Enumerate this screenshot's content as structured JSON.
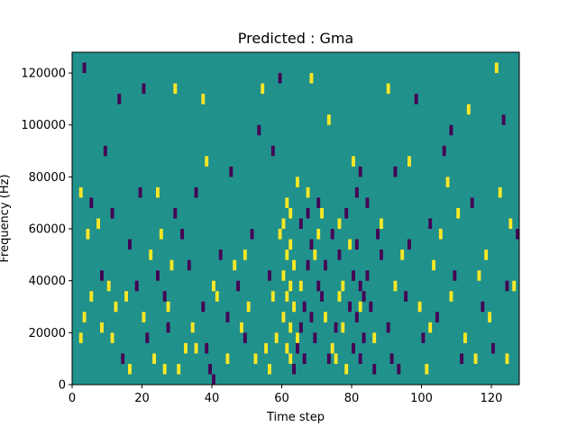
{
  "chart_data": {
    "type": "heatmap",
    "title": "Predicted : Gma",
    "xlabel": "Time step",
    "ylabel": "Frequency (Hz)",
    "xlim": [
      0,
      128
    ],
    "ylim": [
      0,
      128000
    ],
    "x_ticks": [
      0,
      20,
      40,
      60,
      80,
      100,
      120
    ],
    "y_ticks": [
      0,
      20000,
      40000,
      60000,
      80000,
      100000,
      120000
    ],
    "x_tick_labels": [
      "0",
      "20",
      "40",
      "60",
      "80",
      "100",
      "120"
    ],
    "y_tick_labels": [
      "0",
      "20000",
      "40000",
      "60000",
      "80000",
      "100000",
      "120000"
    ],
    "grid": false,
    "colormap": "viridis",
    "colors": {
      "background": "#21918c",
      "high": "#fde725",
      "low": "#440154"
    },
    "cell_height_hz": 4000,
    "cell_width_steps": 1,
    "high_value_cells": [
      [
        2,
        72000
      ],
      [
        2,
        16000
      ],
      [
        3,
        24000
      ],
      [
        4,
        56000
      ],
      [
        5,
        32000
      ],
      [
        7,
        60000
      ],
      [
        8,
        20000
      ],
      [
        10,
        36000
      ],
      [
        11,
        16000
      ],
      [
        12,
        28000
      ],
      [
        15,
        32000
      ],
      [
        16,
        4000
      ],
      [
        20,
        24000
      ],
      [
        22,
        48000
      ],
      [
        23,
        8000
      ],
      [
        24,
        72000
      ],
      [
        25,
        56000
      ],
      [
        26,
        4000
      ],
      [
        27,
        28000
      ],
      [
        28,
        44000
      ],
      [
        29,
        112000
      ],
      [
        30,
        4000
      ],
      [
        32,
        12000
      ],
      [
        34,
        20000
      ],
      [
        35,
        12000
      ],
      [
        37,
        108000
      ],
      [
        38,
        84000
      ],
      [
        40,
        36000
      ],
      [
        41,
        32000
      ],
      [
        44,
        8000
      ],
      [
        46,
        44000
      ],
      [
        48,
        20000
      ],
      [
        49,
        48000
      ],
      [
        50,
        28000
      ],
      [
        52,
        8000
      ],
      [
        54,
        112000
      ],
      [
        55,
        12000
      ],
      [
        56,
        4000
      ],
      [
        57,
        32000
      ],
      [
        58,
        16000
      ],
      [
        59,
        56000
      ],
      [
        60,
        60000
      ],
      [
        60,
        40000
      ],
      [
        60,
        24000
      ],
      [
        61,
        68000
      ],
      [
        61,
        48000
      ],
      [
        61,
        32000
      ],
      [
        61,
        12000
      ],
      [
        62,
        64000
      ],
      [
        62,
        52000
      ],
      [
        62,
        36000
      ],
      [
        62,
        20000
      ],
      [
        62,
        8000
      ],
      [
        63,
        28000
      ],
      [
        63,
        44000
      ],
      [
        64,
        76000
      ],
      [
        64,
        16000
      ],
      [
        65,
        36000
      ],
      [
        67,
        72000
      ],
      [
        68,
        116000
      ],
      [
        69,
        48000
      ],
      [
        70,
        56000
      ],
      [
        71,
        64000
      ],
      [
        72,
        24000
      ],
      [
        73,
        100000
      ],
      [
        74,
        12000
      ],
      [
        75,
        8000
      ],
      [
        76,
        32000
      ],
      [
        76,
        60000
      ],
      [
        77,
        36000
      ],
      [
        77,
        20000
      ],
      [
        78,
        4000
      ],
      [
        79,
        52000
      ],
      [
        80,
        84000
      ],
      [
        82,
        28000
      ],
      [
        86,
        16000
      ],
      [
        88,
        60000
      ],
      [
        90,
        112000
      ],
      [
        92,
        36000
      ],
      [
        94,
        48000
      ],
      [
        96,
        84000
      ],
      [
        99,
        28000
      ],
      [
        101,
        4000
      ],
      [
        102,
        20000
      ],
      [
        103,
        44000
      ],
      [
        105,
        56000
      ],
      [
        107,
        76000
      ],
      [
        108,
        32000
      ],
      [
        110,
        64000
      ],
      [
        112,
        16000
      ],
      [
        113,
        104000
      ],
      [
        115,
        8000
      ],
      [
        116,
        40000
      ],
      [
        118,
        48000
      ],
      [
        119,
        24000
      ],
      [
        121,
        120000
      ],
      [
        122,
        72000
      ],
      [
        124,
        8000
      ],
      [
        125,
        60000
      ],
      [
        126,
        36000
      ]
    ],
    "low_value_cells": [
      [
        3,
        120000
      ],
      [
        5,
        68000
      ],
      [
        8,
        40000
      ],
      [
        9,
        88000
      ],
      [
        11,
        64000
      ],
      [
        13,
        108000
      ],
      [
        14,
        8000
      ],
      [
        16,
        52000
      ],
      [
        18,
        36000
      ],
      [
        19,
        72000
      ],
      [
        20,
        112000
      ],
      [
        21,
        16000
      ],
      [
        24,
        40000
      ],
      [
        26,
        32000
      ],
      [
        27,
        20000
      ],
      [
        29,
        64000
      ],
      [
        31,
        56000
      ],
      [
        33,
        44000
      ],
      [
        35,
        72000
      ],
      [
        37,
        28000
      ],
      [
        38,
        12000
      ],
      [
        39,
        4000
      ],
      [
        40,
        0
      ],
      [
        42,
        48000
      ],
      [
        44,
        24000
      ],
      [
        45,
        80000
      ],
      [
        47,
        36000
      ],
      [
        49,
        16000
      ],
      [
        51,
        56000
      ],
      [
        53,
        96000
      ],
      [
        56,
        40000
      ],
      [
        57,
        88000
      ],
      [
        59,
        116000
      ],
      [
        63,
        4000
      ],
      [
        64,
        12000
      ],
      [
        65,
        20000
      ],
      [
        65,
        60000
      ],
      [
        66,
        8000
      ],
      [
        66,
        28000
      ],
      [
        67,
        44000
      ],
      [
        67,
        64000
      ],
      [
        68,
        24000
      ],
      [
        68,
        52000
      ],
      [
        69,
        16000
      ],
      [
        70,
        68000
      ],
      [
        70,
        36000
      ],
      [
        71,
        32000
      ],
      [
        72,
        44000
      ],
      [
        73,
        8000
      ],
      [
        74,
        56000
      ],
      [
        75,
        20000
      ],
      [
        76,
        48000
      ],
      [
        78,
        64000
      ],
      [
        79,
        28000
      ],
      [
        80,
        12000
      ],
      [
        80,
        40000
      ],
      [
        81,
        24000
      ],
      [
        81,
        52000
      ],
      [
        81,
        72000
      ],
      [
        82,
        8000
      ],
      [
        82,
        36000
      ],
      [
        82,
        80000
      ],
      [
        83,
        16000
      ],
      [
        83,
        32000
      ],
      [
        84,
        40000
      ],
      [
        84,
        68000
      ],
      [
        85,
        28000
      ],
      [
        86,
        4000
      ],
      [
        87,
        56000
      ],
      [
        88,
        48000
      ],
      [
        90,
        20000
      ],
      [
        91,
        8000
      ],
      [
        92,
        80000
      ],
      [
        93,
        4000
      ],
      [
        95,
        32000
      ],
      [
        96,
        52000
      ],
      [
        98,
        108000
      ],
      [
        100,
        16000
      ],
      [
        102,
        60000
      ],
      [
        104,
        24000
      ],
      [
        106,
        88000
      ],
      [
        108,
        96000
      ],
      [
        109,
        40000
      ],
      [
        111,
        8000
      ],
      [
        114,
        68000
      ],
      [
        117,
        28000
      ],
      [
        120,
        12000
      ],
      [
        123,
        100000
      ],
      [
        124,
        36000
      ],
      [
        127,
        56000
      ]
    ]
  }
}
